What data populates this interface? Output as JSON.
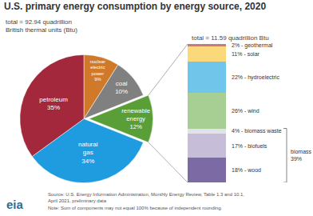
{
  "title": "U.S. primary energy consumption by energy source, 2020",
  "source": "Source: U.S. Energy Information Administration, Monthly Energy Review, Table 1.3 and 10.1, April 2021, preliminary data",
  "note": "Note: Sum of components may not equal 100% because of independent rounding.",
  "logo": "eia",
  "chart_data": [
    {
      "type": "pie",
      "subtitle": "total = 92.94 quadrillion\nBritish thermal units (Btu)",
      "categories": [
        "nuclear electric power",
        "coal",
        "renewable energy",
        "natural gas",
        "petroleum"
      ],
      "values": [
        9,
        10,
        12,
        34,
        35
      ],
      "value_labels": [
        "9%",
        "10%",
        "12%",
        "34%",
        "35%"
      ],
      "colors": [
        "#d07a29",
        "#808080",
        "#5a9e38",
        "#1f9be0",
        "#a3283c"
      ],
      "data_labels": true
    },
    {
      "type": "bar",
      "stacked": true,
      "subtitle": "total = 11.59 quadrillion Btu",
      "ylim": [
        0,
        100
      ],
      "tick_labels": false,
      "data_labels": true,
      "series": [
        {
          "name": "wood",
          "color": "#7b6aa3",
          "values": [
            18
          ],
          "value_labels": [
            "18% - wood"
          ]
        },
        {
          "name": "biofuels",
          "color": "#c6bed8",
          "values": [
            17
          ],
          "value_labels": [
            "17% - biofuels"
          ]
        },
        {
          "name": "biomass waste",
          "color": "#e2e2ea",
          "values": [
            4
          ],
          "value_labels": [
            "4% - biomass waste"
          ]
        },
        {
          "name": "wind",
          "color": "#a7cf94",
          "values": [
            26
          ],
          "value_labels": [
            "26% - wind"
          ]
        },
        {
          "name": "hydroelectric",
          "color": "#70c5ea",
          "values": [
            22
          ],
          "value_labels": [
            "22% - hydroelectric"
          ]
        },
        {
          "name": "solar",
          "color": "#fbd97a",
          "values": [
            11
          ],
          "value_labels": [
            "11% - solar"
          ]
        },
        {
          "name": "geothermal",
          "color": "#c97884",
          "values": [
            2
          ],
          "value_labels": [
            "2% - geothermal"
          ]
        }
      ],
      "annotations": [
        {
          "text": "biomass 39%",
          "spans": [
            "biomass waste",
            "biofuels",
            "wood"
          ]
        }
      ]
    }
  ]
}
